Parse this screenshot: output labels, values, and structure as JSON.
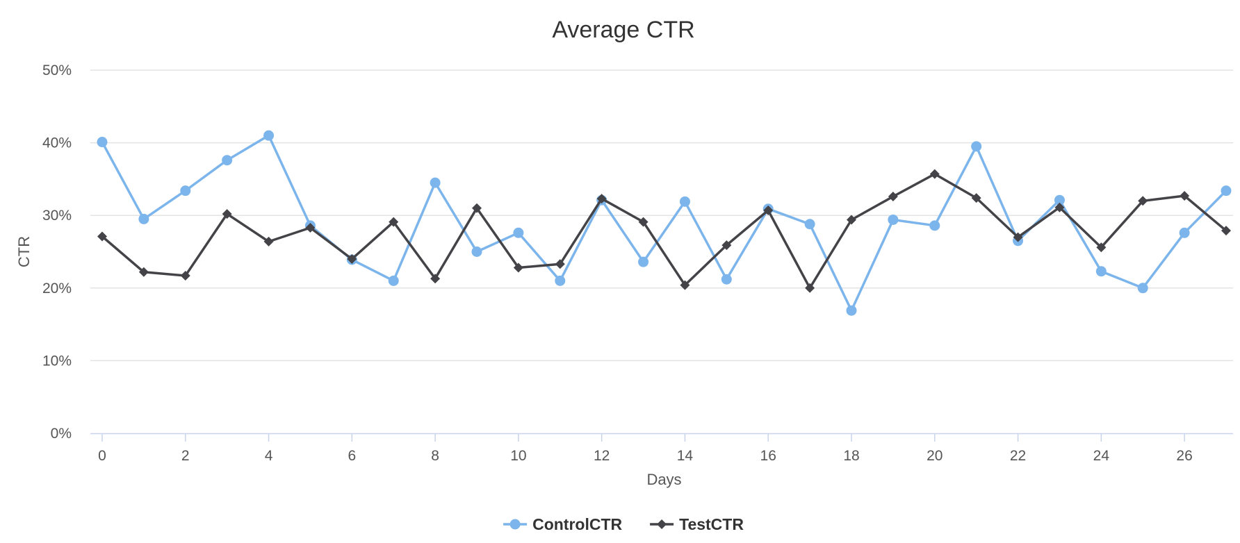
{
  "chart_data": {
    "type": "line",
    "title": "Average CTR",
    "xlabel": "Days",
    "ylabel": "CTR",
    "xlim": [
      0,
      27
    ],
    "xticks": [
      0,
      2,
      4,
      6,
      8,
      10,
      12,
      14,
      16,
      18,
      20,
      22,
      24,
      26
    ],
    "ylim": [
      0,
      50
    ],
    "yticks": [
      0,
      10,
      20,
      30,
      40,
      50
    ],
    "ytick_suffix": "%",
    "grid": true,
    "legend_position": "bottom-center",
    "x": [
      0,
      1,
      2,
      3,
      4,
      5,
      6,
      7,
      8,
      9,
      10,
      11,
      12,
      13,
      14,
      15,
      16,
      17,
      18,
      19,
      20,
      21,
      22,
      23,
      24,
      25,
      26,
      27
    ],
    "series": [
      {
        "name": "ControlCTR",
        "color": "#7cb5ec",
        "marker": "circle",
        "values": [
          40.1,
          29.5,
          33.4,
          37.6,
          41.0,
          28.6,
          23.9,
          21.0,
          34.5,
          25.0,
          27.6,
          21.0,
          32.1,
          23.6,
          31.9,
          21.2,
          30.9,
          28.8,
          16.9,
          29.4,
          28.6,
          39.5,
          26.5,
          32.1,
          22.3,
          20.0,
          27.6,
          33.4
        ]
      },
      {
        "name": "TestCTR",
        "color": "#434348",
        "marker": "diamond",
        "values": [
          27.1,
          22.2,
          21.7,
          30.2,
          26.4,
          28.3,
          24.0,
          29.1,
          21.3,
          31.0,
          22.8,
          23.3,
          32.3,
          29.1,
          20.4,
          25.9,
          30.7,
          20.0,
          29.4,
          32.6,
          35.7,
          32.4,
          27.0,
          31.1,
          25.6,
          32.0,
          32.7,
          27.9
        ]
      }
    ]
  }
}
